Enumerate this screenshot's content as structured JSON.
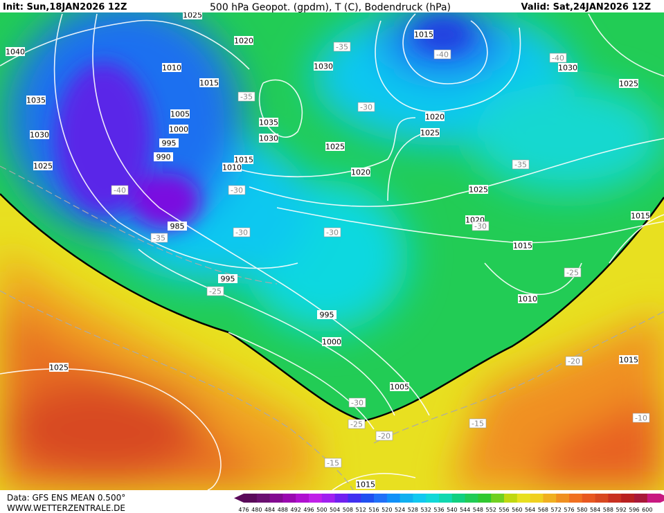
{
  "header": {
    "init": "Init: Sun,18JAN2026 12Z",
    "title": "500 hPa Geopot. (gpdm), T (C), Bodendruck (hPa)",
    "valid": "Valid: Sat,24JAN2026 12Z"
  },
  "isobar_labels": [
    1025,
    1040,
    1020,
    1015,
    1010,
    1030,
    1030,
    1025,
    1015,
    1035,
    1005,
    1020,
    1000,
    1035,
    1025,
    1030,
    995,
    1030,
    1025,
    990,
    1015,
    1010,
    1025,
    1020,
    1025,
    1015,
    1020,
    985,
    1015,
    995,
    1010,
    995,
    1000,
    1015,
    1025,
    1005,
    1015
  ],
  "temperature_labels": [
    -35,
    -40,
    -40,
    -35,
    -30,
    -35,
    -40,
    -30,
    -30,
    -30,
    -30,
    -35,
    -25,
    -25,
    -20,
    -30,
    -25,
    -20,
    -15,
    -10,
    -15
  ],
  "footer": {
    "data": "Data: GFS ENS MEAN 0.500°",
    "site": "WWW.WETTERZENTRALE.DE"
  },
  "colorbar": {
    "ticks": [
      476,
      480,
      484,
      488,
      492,
      496,
      500,
      504,
      508,
      512,
      516,
      520,
      524,
      528,
      532,
      536,
      540,
      544,
      548,
      552,
      556,
      560,
      564,
      568,
      572,
      576,
      580,
      584,
      588,
      592,
      596,
      600
    ]
  }
}
